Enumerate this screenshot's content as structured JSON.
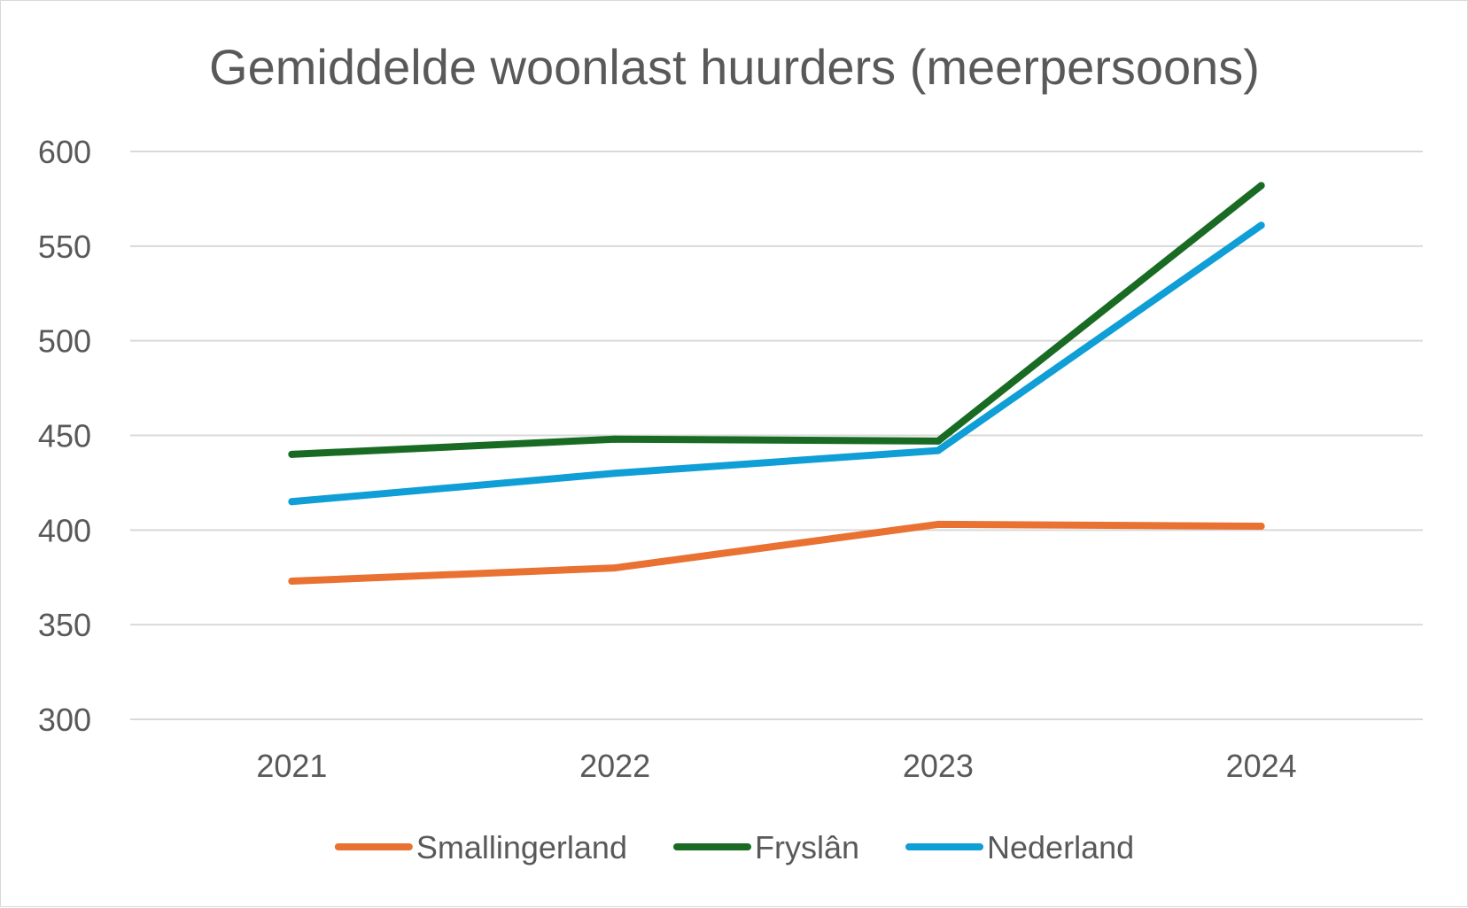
{
  "chart_data": {
    "type": "line",
    "title": "Gemiddelde woonlast huurders (meerpersoons)",
    "xlabel": "",
    "ylabel": "",
    "categories": [
      "2021",
      "2022",
      "2023",
      "2024"
    ],
    "ylim": [
      300,
      600
    ],
    "yticks": [
      "300",
      "350",
      "400",
      "450",
      "500",
      "550",
      "600"
    ],
    "grid": true,
    "legend_position": "bottom",
    "series": [
      {
        "name": "Smallingerland",
        "color": "#e97132",
        "values": [
          373,
          380,
          403,
          402
        ]
      },
      {
        "name": "Fryslân",
        "color": "#196b24",
        "values": [
          440,
          448,
          447,
          582
        ]
      },
      {
        "name": "Nederland",
        "color": "#0f9ed5",
        "values": [
          415,
          430,
          442,
          561
        ]
      }
    ]
  }
}
